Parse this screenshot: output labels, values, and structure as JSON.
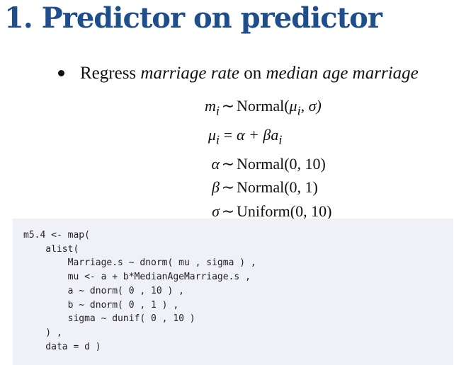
{
  "slide": {
    "title": "1. Predictor on predictor",
    "bullet": {
      "prefix": "Regress ",
      "var1": "marriage rate",
      "middle": " on ",
      "var2": "median age marriage"
    },
    "equations": [
      {
        "lhs": "m",
        "lhs_sub": "i",
        "op": "∼",
        "rhs_pre": "Normal(",
        "rhs_var": "μ",
        "rhs_sub": "i",
        "rhs_post": ", σ)"
      },
      {
        "lhs": "μ",
        "lhs_sub": "i",
        "op": "=",
        "rhs_pre": "α + β",
        "rhs_var": "a",
        "rhs_sub": "i",
        "rhs_post": ""
      },
      {
        "lhs": "α",
        "lhs_sub": "",
        "op": "∼",
        "rhs_pre": "Normal(0, 10)",
        "rhs_var": "",
        "rhs_sub": "",
        "rhs_post": ""
      },
      {
        "lhs": "β",
        "lhs_sub": "",
        "op": "∼",
        "rhs_pre": "Normal(0, 1)",
        "rhs_var": "",
        "rhs_sub": "",
        "rhs_post": ""
      },
      {
        "lhs": "σ",
        "lhs_sub": "",
        "op": "∼",
        "rhs_pre": "Uniform(0, 10)",
        "rhs_var": "",
        "rhs_sub": "",
        "rhs_post": ""
      }
    ],
    "code": "m5.4 <- map(\n    alist(\n        Marriage.s ~ dnorm( mu , sigma ) ,\n        mu <- a + b*MedianAgeMarriage.s ,\n        a ~ dnorm( 0 , 10 ) ,\n        b ~ dnorm( 0 , 1 ) ,\n        sigma ~ dunif( 0 , 10 )\n    ) ,\n    data = d )"
  }
}
